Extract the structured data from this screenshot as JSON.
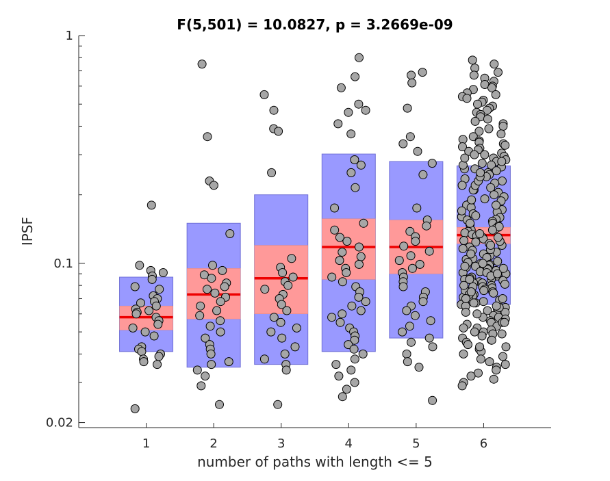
{
  "chart_data": {
    "type": "boxplot-jitter",
    "title": "F(5,501) = 10.0827, p = 3.2669e-09",
    "xlabel": "number of paths with length <= 5",
    "ylabel": "IPSF",
    "y_scale": "log",
    "ylim": [
      0.019,
      1.0
    ],
    "xlim": [
      0,
      7
    ],
    "categories": [
      "1",
      "2",
      "3",
      "4",
      "5",
      "6"
    ],
    "y_tick_labels": [
      {
        "value": 0.02,
        "label": "0.02"
      },
      {
        "value": 0.1,
        "label": "0.1"
      },
      {
        "value": 1,
        "label": "1"
      }
    ],
    "colors": {
      "sd_box": "#9999ff",
      "sem_box": "#ff9999",
      "mean_line": "#ee0000",
      "point_fill": "#a6a6a6",
      "point_stroke": "#000000",
      "axis": "#262626"
    },
    "groups": [
      {
        "x": 1,
        "mean": 0.058,
        "sem_low": 0.051,
        "sem_high": 0.065,
        "sd_low": 0.041,
        "sd_high": 0.087,
        "points": [
          0.18,
          0.098,
          0.093,
          0.091,
          0.088,
          0.085,
          0.079,
          0.077,
          0.072,
          0.07,
          0.068,
          0.067,
          0.065,
          0.063,
          0.062,
          0.061,
          0.06,
          0.058,
          0.056,
          0.054,
          0.052,
          0.05,
          0.048,
          0.043,
          0.042,
          0.041,
          0.04,
          0.039,
          0.038,
          0.037,
          0.036,
          0.023
        ]
      },
      {
        "x": 2,
        "mean": 0.073,
        "sem_low": 0.057,
        "sem_high": 0.095,
        "sd_low": 0.035,
        "sd_high": 0.15,
        "points": [
          0.75,
          0.36,
          0.23,
          0.22,
          0.135,
          0.098,
          0.093,
          0.089,
          0.086,
          0.082,
          0.079,
          0.077,
          0.074,
          0.071,
          0.068,
          0.065,
          0.062,
          0.059,
          0.056,
          0.053,
          0.05,
          0.047,
          0.044,
          0.042,
          0.04,
          0.037,
          0.036,
          0.034,
          0.032,
          0.029,
          0.024
        ]
      },
      {
        "x": 3,
        "mean": 0.086,
        "sem_low": 0.06,
        "sem_high": 0.12,
        "sd_low": 0.036,
        "sd_high": 0.2,
        "points": [
          0.55,
          0.47,
          0.39,
          0.38,
          0.25,
          0.105,
          0.096,
          0.091,
          0.087,
          0.083,
          0.08,
          0.077,
          0.073,
          0.07,
          0.066,
          0.062,
          0.058,
          0.055,
          0.052,
          0.05,
          0.047,
          0.043,
          0.04,
          0.038,
          0.036,
          0.034,
          0.024
        ]
      },
      {
        "x": 4,
        "mean": 0.118,
        "sem_low": 0.085,
        "sem_high": 0.157,
        "sd_low": 0.041,
        "sd_high": 0.302,
        "points": [
          0.8,
          0.66,
          0.59,
          0.5,
          0.47,
          0.46,
          0.41,
          0.37,
          0.285,
          0.27,
          0.25,
          0.215,
          0.175,
          0.15,
          0.14,
          0.13,
          0.125,
          0.118,
          0.112,
          0.107,
          0.103,
          0.099,
          0.095,
          0.091,
          0.087,
          0.083,
          0.079,
          0.075,
          0.071,
          0.068,
          0.065,
          0.062,
          0.06,
          0.058,
          0.055,
          0.052,
          0.05,
          0.048,
          0.046,
          0.044,
          0.042,
          0.04,
          0.038,
          0.036,
          0.034,
          0.032,
          0.03,
          0.028,
          0.026
        ]
      },
      {
        "x": 5,
        "mean": 0.118,
        "sem_low": 0.09,
        "sem_high": 0.155,
        "sd_low": 0.047,
        "sd_high": 0.28,
        "points": [
          0.69,
          0.67,
          0.62,
          0.48,
          0.36,
          0.335,
          0.31,
          0.275,
          0.245,
          0.175,
          0.155,
          0.146,
          0.138,
          0.131,
          0.125,
          0.119,
          0.113,
          0.108,
          0.103,
          0.099,
          0.095,
          0.091,
          0.087,
          0.083,
          0.079,
          0.075,
          0.071,
          0.068,
          0.065,
          0.062,
          0.059,
          0.056,
          0.053,
          0.05,
          0.047,
          0.045,
          0.043,
          0.04,
          0.037,
          0.035,
          0.025
        ]
      },
      {
        "x": 6,
        "mean": 0.133,
        "sem_low": 0.122,
        "sem_high": 0.144,
        "sd_low": 0.066,
        "sd_high": 0.268,
        "points": [
          0.78,
          0.75,
          0.72,
          0.69,
          0.67,
          0.65,
          0.63,
          0.61,
          0.6,
          0.59,
          0.58,
          0.56,
          0.55,
          0.54,
          0.53,
          0.52,
          0.51,
          0.5,
          0.49,
          0.48,
          0.47,
          0.46,
          0.45,
          0.44,
          0.43,
          0.42,
          0.41,
          0.4,
          0.39,
          0.38,
          0.37,
          0.36,
          0.35,
          0.345,
          0.34,
          0.335,
          0.33,
          0.325,
          0.32,
          0.315,
          0.31,
          0.305,
          0.3,
          0.295,
          0.29,
          0.285,
          0.28,
          0.275,
          0.27,
          0.265,
          0.26,
          0.255,
          0.25,
          0.245,
          0.24,
          0.235,
          0.23,
          0.225,
          0.22,
          0.215,
          0.21,
          0.205,
          0.2,
          0.196,
          0.192,
          0.188,
          0.184,
          0.18,
          0.176,
          0.172,
          0.168,
          0.165,
          0.162,
          0.159,
          0.156,
          0.153,
          0.15,
          0.148,
          0.146,
          0.144,
          0.142,
          0.14,
          0.138,
          0.136,
          0.134,
          0.132,
          0.13,
          0.128,
          0.126,
          0.124,
          0.122,
          0.12,
          0.118,
          0.116,
          0.114,
          0.112,
          0.11,
          0.108,
          0.106,
          0.104,
          0.102,
          0.1,
          0.099,
          0.098,
          0.097,
          0.096,
          0.095,
          0.094,
          0.093,
          0.092,
          0.091,
          0.09,
          0.089,
          0.088,
          0.087,
          0.086,
          0.085,
          0.084,
          0.083,
          0.082,
          0.081,
          0.08,
          0.079,
          0.078,
          0.077,
          0.076,
          0.075,
          0.074,
          0.073,
          0.072,
          0.071,
          0.07,
          0.069,
          0.068,
          0.067,
          0.066,
          0.065,
          0.064,
          0.063,
          0.062,
          0.061,
          0.06,
          0.059,
          0.058,
          0.057,
          0.056,
          0.055,
          0.054,
          0.053,
          0.052,
          0.051,
          0.05,
          0.049,
          0.048,
          0.047,
          0.046,
          0.045,
          0.044,
          0.043,
          0.042,
          0.041,
          0.04,
          0.039,
          0.038,
          0.037,
          0.036,
          0.035,
          0.034,
          0.033,
          0.032,
          0.031,
          0.03,
          0.029,
          0.145,
          0.135,
          0.125,
          0.115,
          0.105,
          0.101,
          0.097,
          0.094,
          0.091,
          0.088,
          0.085,
          0.082,
          0.079,
          0.076,
          0.073,
          0.07,
          0.067,
          0.064,
          0.061,
          0.058,
          0.055,
          0.052,
          0.049,
          0.046,
          0.043,
          0.16,
          0.155,
          0.15,
          0.14,
          0.13,
          0.12,
          0.11,
          0.1,
          0.19,
          0.18,
          0.17,
          0.21,
          0.22,
          0.23,
          0.24,
          0.25,
          0.26,
          0.27,
          0.28,
          0.29,
          0.3,
          0.095,
          0.09,
          0.085,
          0.08,
          0.075,
          0.07,
          0.065,
          0.06,
          0.055,
          0.05
        ]
      }
    ]
  }
}
